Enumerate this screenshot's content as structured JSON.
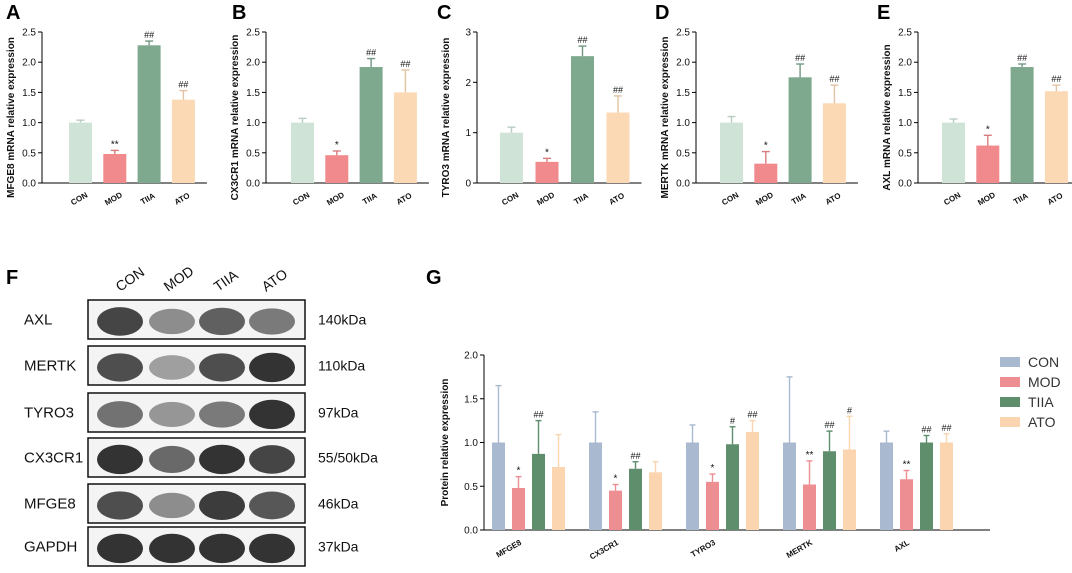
{
  "colors": {
    "CON": "#cfe3d6",
    "MOD": "#f08a8c",
    "TIIA": "#7fa98e",
    "ATO": "#fbd9b5",
    "CON_G": "#a9bad0",
    "MOD_G": "#ec8e92",
    "TIIA_G": "#5e8e6c",
    "ATO_G": "#fad5b0"
  },
  "chart_data": [
    {
      "panel": "A",
      "type": "bar",
      "ylabel": "MFGE8 mRNA relative expression",
      "categories": [
        "CON",
        "MOD",
        "TIIA",
        "ATO"
      ],
      "values": [
        1.0,
        0.48,
        2.28,
        1.38
      ],
      "errors": [
        0.04,
        0.06,
        0.07,
        0.15
      ],
      "sig": [
        "",
        "**",
        "##",
        "##"
      ],
      "ylim": [
        0,
        2.5
      ],
      "yticks": [
        "0.0",
        "0.5",
        "1.0",
        "1.5",
        "2.0",
        "2.5"
      ]
    },
    {
      "panel": "B",
      "type": "bar",
      "ylabel": "CX3CR1 mRNA relative expression",
      "categories": [
        "CON",
        "MOD",
        "TIIA",
        "ATO"
      ],
      "values": [
        1.0,
        0.46,
        1.92,
        1.5
      ],
      "errors": [
        0.07,
        0.07,
        0.14,
        0.37
      ],
      "sig": [
        "",
        "*",
        "##",
        "##"
      ],
      "ylim": [
        0,
        2.5
      ],
      "yticks": [
        "0.0",
        "0.5",
        "1.0",
        "1.5",
        "2.0",
        "2.5"
      ]
    },
    {
      "panel": "C",
      "type": "bar",
      "ylabel": "TYRO3 mRNA relative expression",
      "categories": [
        "CON",
        "MOD",
        "TIIA",
        "ATO"
      ],
      "values": [
        1.0,
        0.42,
        2.52,
        1.4
      ],
      "errors": [
        0.11,
        0.07,
        0.2,
        0.33
      ],
      "sig": [
        "",
        "*",
        "##",
        "##"
      ],
      "ylim": [
        0,
        3
      ],
      "yticks": [
        "0",
        "1",
        "2",
        "3"
      ]
    },
    {
      "panel": "D",
      "type": "bar",
      "ylabel": "MERTK mRNA relative expression",
      "categories": [
        "CON",
        "MOD",
        "TIIA",
        "ATO"
      ],
      "values": [
        1.0,
        0.32,
        1.75,
        1.32
      ],
      "errors": [
        0.1,
        0.2,
        0.22,
        0.3
      ],
      "sig": [
        "",
        "*",
        "##",
        "##"
      ],
      "ylim": [
        0,
        2.5
      ],
      "yticks": [
        "0.0",
        "0.5",
        "1.0",
        "1.5",
        "2.0",
        "2.5"
      ]
    },
    {
      "panel": "E",
      "type": "bar",
      "ylabel": "AXL mRNA relative expression",
      "categories": [
        "CON",
        "MOD",
        "TIIA",
        "ATO"
      ],
      "values": [
        1.0,
        0.62,
        1.92,
        1.52
      ],
      "errors": [
        0.06,
        0.17,
        0.05,
        0.1
      ],
      "sig": [
        "",
        "*",
        "##",
        "##"
      ],
      "ylim": [
        0,
        2.5
      ],
      "yticks": [
        "0.0",
        "0.5",
        "1.0",
        "1.5",
        "2.0",
        "2.5"
      ]
    },
    {
      "panel": "G",
      "type": "bar",
      "ylabel": "Protein relative expression",
      "categories": [
        "MFGE8",
        "CX3CR1",
        "TYRO3",
        "MERTK",
        "AXL"
      ],
      "series": [
        {
          "name": "CON",
          "values": [
            1.0,
            1.0,
            1.0,
            1.0,
            1.0
          ],
          "errors": [
            0.65,
            0.35,
            0.2,
            0.75,
            0.13
          ],
          "sig": [
            "",
            "",
            "",
            "",
            ""
          ]
        },
        {
          "name": "MOD",
          "values": [
            0.48,
            0.45,
            0.55,
            0.52,
            0.58
          ],
          "errors": [
            0.13,
            0.07,
            0.09,
            0.27,
            0.1
          ],
          "sig": [
            "*",
            "*",
            "*",
            "**",
            "**"
          ]
        },
        {
          "name": "TIIA",
          "values": [
            0.87,
            0.7,
            0.98,
            0.9,
            1.0
          ],
          "errors": [
            0.38,
            0.08,
            0.2,
            0.23,
            0.08
          ],
          "sig": [
            "##",
            "##",
            "#",
            "##",
            "##"
          ]
        },
        {
          "name": "ATO",
          "values": [
            0.72,
            0.66,
            1.12,
            0.92,
            1.0
          ],
          "errors": [
            0.37,
            0.12,
            0.13,
            0.38,
            0.1
          ],
          "sig": [
            "",
            "",
            "##",
            "#",
            "##"
          ]
        }
      ],
      "legend": [
        "CON",
        "MOD",
        "TIIA",
        "ATO"
      ],
      "ylim": [
        0,
        2.0
      ],
      "yticks": [
        "0.0",
        "0.5",
        "1.0",
        "1.5",
        "2.0"
      ]
    }
  ],
  "blot": {
    "panel": "F",
    "lanes": [
      "CON",
      "MOD",
      "TIIA",
      "ATO"
    ],
    "rows": [
      {
        "protein": "AXL",
        "kda": "140kDa",
        "intensity": [
          0.85,
          0.45,
          0.7,
          0.55
        ]
      },
      {
        "protein": "MERTK",
        "kda": "110kDa",
        "intensity": [
          0.8,
          0.35,
          0.8,
          0.95
        ]
      },
      {
        "protein": "TYRO3",
        "kda": "97kDa",
        "intensity": [
          0.6,
          0.4,
          0.55,
          0.95
        ]
      },
      {
        "protein": "CX3CR1",
        "kda": "55/50kDa",
        "intensity": [
          0.95,
          0.65,
          0.95,
          0.85
        ]
      },
      {
        "protein": "MFGE8",
        "kda": "46kDa",
        "intensity": [
          0.8,
          0.45,
          0.9,
          0.75
        ]
      },
      {
        "protein": "GAPDH",
        "kda": "37kDa",
        "intensity": [
          0.95,
          0.95,
          0.95,
          0.95
        ]
      }
    ]
  }
}
